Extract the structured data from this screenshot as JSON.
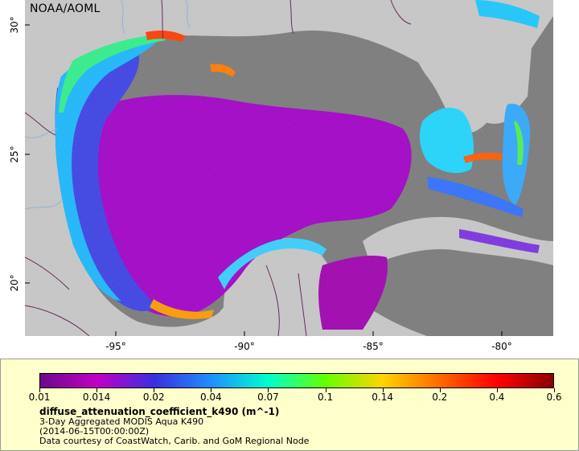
{
  "map": {
    "attribution": "NOAA/AOML",
    "x_ticks": [
      {
        "label": "-95°",
        "lon": -95
      },
      {
        "label": "-90°",
        "lon": -90
      },
      {
        "label": "-85°",
        "lon": -85
      },
      {
        "label": "-80°",
        "lon": -80
      }
    ],
    "y_ticks": [
      {
        "label": "30°",
        "lat": 30
      },
      {
        "label": "25°",
        "lat": 25
      },
      {
        "label": "20°",
        "lat": 20
      }
    ],
    "lon_range": [
      -98.5,
      -78.1
    ],
    "lat_range": [
      18.2,
      31.0
    ],
    "colors": {
      "land": "#c8c8c8",
      "no_data_ocean": "#7a7a7a",
      "border": "#6b2a5e",
      "river": "#8fb4d6"
    }
  },
  "legend": {
    "colorbar_stops": [
      "#6a0a8a",
      "#c000c8",
      "#3b2ee0",
      "#1f8fff",
      "#00ffcc",
      "#66ff00",
      "#ffd400",
      "#ff6a00",
      "#ff0000",
      "#8a0000"
    ],
    "ticks": [
      {
        "label": "0.01",
        "value": 0.01
      },
      {
        "label": "0.014",
        "value": 0.014
      },
      {
        "label": "0.02",
        "value": 0.02
      },
      {
        "label": "0.04",
        "value": 0.04
      },
      {
        "label": "0.07",
        "value": 0.07
      },
      {
        "label": "0.1",
        "value": 0.1
      },
      {
        "label": "0.14",
        "value": 0.14
      },
      {
        "label": "0.2",
        "value": 0.2
      },
      {
        "label": "0.4",
        "value": 0.4
      },
      {
        "label": "0.6",
        "value": 0.6
      }
    ],
    "title": "diffuse_attenuation_coefficient_k490 (m^-1)",
    "line1": "3-Day Aggregated MODIS Aqua K490",
    "line2": "(2014-06-15T00:00:00Z)",
    "line3": "Data courtesy of CoastWatch, Carib. and GoM Regional Node"
  }
}
